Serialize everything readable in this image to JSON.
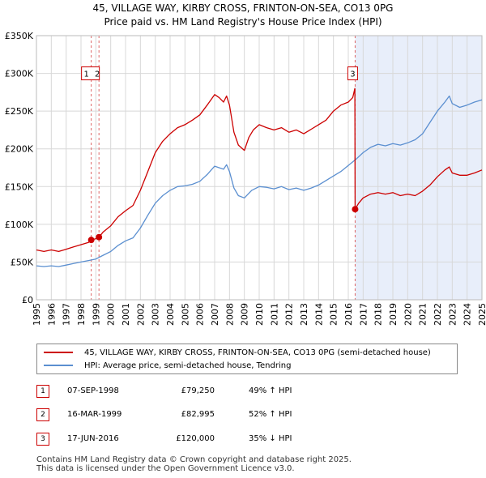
{
  "title": {
    "line1": "45, VILLAGE WAY, KIRBY CROSS, FRINTON-ON-SEA, CO13 0PG",
    "line2": "Price paid vs. HM Land Registry's House Price Index (HPI)"
  },
  "colors": {
    "property_line": "#cc0000",
    "hpi_line": "#5b8fd0",
    "shade": "#e8eefa",
    "marker_line": "#dd6666",
    "grid": "#d8d8d8"
  },
  "chart_data": {
    "type": "line",
    "xlim": [
      1995,
      2025
    ],
    "ylim": [
      0,
      350000
    ],
    "yticks": [
      {
        "value": 0,
        "label": "£0"
      },
      {
        "value": 50000,
        "label": "£50K"
      },
      {
        "value": 100000,
        "label": "£100K"
      },
      {
        "value": 150000,
        "label": "£150K"
      },
      {
        "value": 200000,
        "label": "£200K"
      },
      {
        "value": 250000,
        "label": "£250K"
      },
      {
        "value": 300000,
        "label": "£300K"
      },
      {
        "value": 350000,
        "label": "£350K"
      }
    ],
    "xticks": [
      "1995",
      "1996",
      "1997",
      "1998",
      "1999",
      "2000",
      "2001",
      "2002",
      "2003",
      "2004",
      "2005",
      "2006",
      "2007",
      "2008",
      "2009",
      "2010",
      "2011",
      "2012",
      "2013",
      "2014",
      "2015",
      "2016",
      "2017",
      "2018",
      "2019",
      "2020",
      "2021",
      "2022",
      "2023",
      "2024",
      "2025"
    ],
    "shade_from": 2016.46,
    "series": [
      {
        "name": "45, VILLAGE WAY, KIRBY CROSS, FRINTON-ON-SEA, CO13 0PG (semi-detached house)",
        "color": "#cc0000",
        "x": [
          1995,
          1995.5,
          1996,
          1996.5,
          1997,
          1997.5,
          1998,
          1998.5,
          1998.69,
          1999.0,
          1999.21,
          1999.5,
          2000,
          2000.5,
          2001,
          2001.5,
          2002,
          2002.5,
          2003,
          2003.5,
          2004,
          2004.5,
          2005,
          2005.5,
          2006,
          2006.5,
          2007,
          2007.3,
          2007.6,
          2007.8,
          2008,
          2008.3,
          2008.6,
          2009,
          2009.3,
          2009.6,
          2010,
          2010.5,
          2011,
          2011.5,
          2012,
          2012.5,
          2013,
          2013.5,
          2014,
          2014.5,
          2015,
          2015.5,
          2016,
          2016.3,
          2016.44,
          2016.46,
          2016.7,
          2017,
          2017.5,
          2018,
          2018.5,
          2019,
          2019.5,
          2020,
          2020.5,
          2021,
          2021.5,
          2022,
          2022.5,
          2022.8,
          2023,
          2023.5,
          2024,
          2024.5,
          2025
        ],
        "values": [
          66000,
          64000,
          66000,
          64000,
          67000,
          70000,
          73000,
          76000,
          79250,
          81000,
          82995,
          90000,
          98000,
          110000,
          118000,
          125000,
          145000,
          170000,
          195000,
          210000,
          220000,
          228000,
          232000,
          238000,
          245000,
          258000,
          272000,
          268000,
          262000,
          270000,
          258000,
          222000,
          205000,
          198000,
          215000,
          225000,
          232000,
          228000,
          225000,
          228000,
          222000,
          225000,
          220000,
          226000,
          232000,
          238000,
          250000,
          258000,
          262000,
          268000,
          280000,
          120000,
          128000,
          135000,
          140000,
          142000,
          140000,
          142000,
          138000,
          140000,
          138000,
          144000,
          152000,
          163000,
          172000,
          176000,
          168000,
          165000,
          165000,
          168000,
          172000
        ]
      },
      {
        "name": "HPI: Average price, semi-detached house, Tendring",
        "color": "#5b8fd0",
        "x": [
          1995,
          1995.5,
          1996,
          1996.5,
          1997,
          1997.5,
          1998,
          1998.5,
          1999,
          1999.5,
          2000,
          2000.5,
          2001,
          2001.5,
          2002,
          2002.5,
          2003,
          2003.5,
          2004,
          2004.5,
          2005,
          2005.5,
          2006,
          2006.5,
          2007,
          2007.3,
          2007.6,
          2007.8,
          2008,
          2008.3,
          2008.6,
          2009,
          2009.5,
          2010,
          2010.5,
          2011,
          2011.5,
          2012,
          2012.5,
          2013,
          2013.5,
          2014,
          2014.5,
          2015,
          2015.5,
          2016,
          2016.5,
          2017,
          2017.5,
          2018,
          2018.5,
          2019,
          2019.5,
          2020,
          2020.5,
          2021,
          2021.5,
          2022,
          2022.5,
          2022.8,
          2023,
          2023.5,
          2024,
          2024.5,
          2025
        ],
        "values": [
          45000,
          44000,
          45000,
          44000,
          46000,
          48000,
          50000,
          52000,
          54000,
          59000,
          64000,
          72000,
          78000,
          82000,
          95000,
          112000,
          128000,
          138000,
          145000,
          150000,
          151000,
          153000,
          157000,
          166000,
          177000,
          175000,
          173000,
          179000,
          170000,
          148000,
          138000,
          135000,
          145000,
          150000,
          149000,
          147000,
          150000,
          146000,
          148000,
          145000,
          148000,
          152000,
          158000,
          164000,
          170000,
          178000,
          186000,
          195000,
          202000,
          206000,
          204000,
          207000,
          205000,
          208000,
          212000,
          220000,
          235000,
          250000,
          262000,
          270000,
          260000,
          255000,
          258000,
          262000,
          265000
        ]
      }
    ],
    "sales": [
      {
        "n": "1",
        "x": 1998.69,
        "value": 79250
      },
      {
        "n": "2",
        "x": 1999.21,
        "value": 82995
      },
      {
        "n": "3",
        "x": 2016.46,
        "value": 120000
      }
    ],
    "callout_label_value": 300000
  },
  "legend": {
    "property_label": "45, VILLAGE WAY, KIRBY CROSS, FRINTON-ON-SEA, CO13 0PG (semi-detached house)",
    "hpi_label": "HPI: Average price, semi-detached house, Tendring"
  },
  "sales_table": [
    {
      "n": "1",
      "date": "07-SEP-1998",
      "price": "£79,250",
      "hpi": "49% ↑ HPI"
    },
    {
      "n": "2",
      "date": "16-MAR-1999",
      "price": "£82,995",
      "hpi": "52% ↑ HPI"
    },
    {
      "n": "3",
      "date": "17-JUN-2016",
      "price": "£120,000",
      "hpi": "35% ↓ HPI"
    }
  ],
  "footer": {
    "line1": "Contains HM Land Registry data © Crown copyright and database right 2025.",
    "line2": "This data is licensed under the Open Government Licence v3.0."
  }
}
